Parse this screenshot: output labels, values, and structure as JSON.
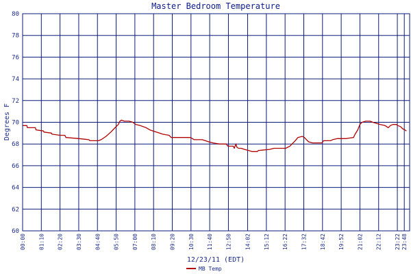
{
  "chart_data": {
    "type": "line",
    "title": "Master Bedroom Temperature",
    "xlabel": "12/23/11 (EDT)",
    "ylabel": "Degrees F",
    "ylim": [
      60,
      80
    ],
    "yticks": [
      60,
      62,
      64,
      66,
      68,
      70,
      72,
      74,
      76,
      78,
      80
    ],
    "xlim": [
      0,
      1448
    ],
    "xticks": [
      {
        "label": "00:00",
        "value": 0
      },
      {
        "label": "01:10",
        "value": 70
      },
      {
        "label": "02:20",
        "value": 140
      },
      {
        "label": "03:30",
        "value": 210
      },
      {
        "label": "04:40",
        "value": 280
      },
      {
        "label": "05:50",
        "value": 350
      },
      {
        "label": "07:00",
        "value": 420
      },
      {
        "label": "08:10",
        "value": 490
      },
      {
        "label": "09:20",
        "value": 560
      },
      {
        "label": "10:30",
        "value": 630
      },
      {
        "label": "11:40",
        "value": 700
      },
      {
        "label": "12:50",
        "value": 770
      },
      {
        "label": "14:02",
        "value": 842
      },
      {
        "label": "15:12",
        "value": 912
      },
      {
        "label": "16:22",
        "value": 982
      },
      {
        "label": "17:32",
        "value": 1052
      },
      {
        "label": "18:42",
        "value": 1122
      },
      {
        "label": "19:52",
        "value": 1192
      },
      {
        "label": "21:02",
        "value": 1262
      },
      {
        "label": "22:12",
        "value": 1332
      },
      {
        "label": "23:22",
        "value": 1402
      },
      {
        "label": "23:48",
        "value": 1428
      }
    ],
    "grid": true,
    "legend_position": "bottom-center",
    "colors": {
      "grid": "#0a1a7a",
      "title": "#0a1a8a",
      "axis_text": "#1a2a8a",
      "series": "#b00000",
      "background": "#ffffff"
    },
    "series": [
      {
        "name": "MB Temp",
        "color": "#b00000",
        "points": [
          [
            0,
            69.7
          ],
          [
            16,
            69.7
          ],
          [
            18,
            69.5
          ],
          [
            48,
            69.5
          ],
          [
            50,
            69.3
          ],
          [
            78,
            69.2
          ],
          [
            80,
            69.1
          ],
          [
            108,
            69.0
          ],
          [
            110,
            68.9
          ],
          [
            140,
            68.8
          ],
          [
            158,
            68.8
          ],
          [
            162,
            68.6
          ],
          [
            210,
            68.5
          ],
          [
            248,
            68.4
          ],
          [
            252,
            68.3
          ],
          [
            284,
            68.3
          ],
          [
            294,
            68.4
          ],
          [
            312,
            68.7
          ],
          [
            330,
            69.1
          ],
          [
            342,
            69.4
          ],
          [
            358,
            69.8
          ],
          [
            364,
            70.1
          ],
          [
            370,
            70.2
          ],
          [
            380,
            70.1
          ],
          [
            398,
            70.1
          ],
          [
            412,
            70.0
          ],
          [
            418,
            69.9
          ],
          [
            424,
            69.8
          ],
          [
            440,
            69.7
          ],
          [
            462,
            69.5
          ],
          [
            476,
            69.3
          ],
          [
            488,
            69.2
          ],
          [
            500,
            69.1
          ],
          [
            512,
            69.0
          ],
          [
            524,
            68.9
          ],
          [
            548,
            68.8
          ],
          [
            556,
            68.6
          ],
          [
            590,
            68.6
          ],
          [
            628,
            68.6
          ],
          [
            642,
            68.4
          ],
          [
            672,
            68.4
          ],
          [
            696,
            68.2
          ],
          [
            712,
            68.1
          ],
          [
            736,
            68.0
          ],
          [
            762,
            68.0
          ],
          [
            768,
            67.8
          ],
          [
            788,
            67.8
          ],
          [
            792,
            67.6
          ],
          [
            798,
            68.0
          ],
          [
            802,
            67.7
          ],
          [
            808,
            67.6
          ],
          [
            818,
            67.6
          ],
          [
            830,
            67.5
          ],
          [
            846,
            67.4
          ],
          [
            858,
            67.3
          ],
          [
            878,
            67.3
          ],
          [
            882,
            67.4
          ],
          [
            924,
            67.5
          ],
          [
            940,
            67.6
          ],
          [
            984,
            67.6
          ],
          [
            1000,
            67.8
          ],
          [
            1008,
            68.0
          ],
          [
            1020,
            68.3
          ],
          [
            1030,
            68.6
          ],
          [
            1046,
            68.7
          ],
          [
            1054,
            68.6
          ],
          [
            1062,
            68.4
          ],
          [
            1070,
            68.2
          ],
          [
            1084,
            68.1
          ],
          [
            1102,
            68.1
          ],
          [
            1120,
            68.1
          ],
          [
            1126,
            68.3
          ],
          [
            1152,
            68.3
          ],
          [
            1160,
            68.4
          ],
          [
            1178,
            68.5
          ],
          [
            1188,
            68.5
          ],
          [
            1210,
            68.5
          ],
          [
            1238,
            68.6
          ],
          [
            1244,
            68.9
          ],
          [
            1254,
            69.3
          ],
          [
            1262,
            69.8
          ],
          [
            1270,
            70.0
          ],
          [
            1284,
            70.1
          ],
          [
            1300,
            70.1
          ],
          [
            1310,
            70.0
          ],
          [
            1324,
            69.9
          ],
          [
            1338,
            69.8
          ],
          [
            1356,
            69.7
          ],
          [
            1368,
            69.5
          ],
          [
            1376,
            69.7
          ],
          [
            1386,
            69.8
          ],
          [
            1398,
            69.8
          ],
          [
            1404,
            69.7
          ],
          [
            1414,
            69.6
          ],
          [
            1422,
            69.4
          ],
          [
            1430,
            69.3
          ],
          [
            1436,
            69.2
          ]
        ]
      }
    ]
  }
}
